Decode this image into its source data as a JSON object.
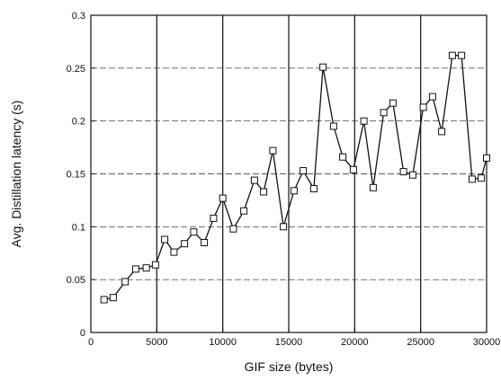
{
  "chart_data": {
    "type": "line",
    "title": "",
    "xlabel": "GIF size (bytes)",
    "ylabel": "Avg. Distillation latency (s)",
    "xlim": [
      0,
      30000
    ],
    "ylim": [
      0,
      0.3
    ],
    "x_ticks": [
      0,
      5000,
      10000,
      15000,
      20000,
      25000,
      30000
    ],
    "x_tick_labels": [
      "0",
      "5000",
      "10000",
      "15000",
      "20000",
      "25000",
      "30000"
    ],
    "y_ticks": [
      0,
      0.05,
      0.1,
      0.15,
      0.2,
      0.25,
      0.3
    ],
    "y_tick_labels": [
      "0",
      "0.05",
      "0.1",
      "0.15",
      "0.2",
      "0.25",
      "0.3"
    ],
    "grid": true,
    "legend": "none",
    "marker": "square",
    "colors": {
      "line": "#111111",
      "grid": "#222222",
      "marker_fill": "#ffffff"
    },
    "series": [
      {
        "x": [
          1000,
          1700,
          2600,
          3400,
          4200,
          4900,
          5600,
          6300,
          7100,
          7800,
          8600,
          9300,
          10000,
          10800,
          11600,
          12400,
          13100,
          13800,
          14600,
          15400,
          16100,
          16900,
          17600,
          18400,
          19100,
          19900,
          20700,
          21400,
          22200,
          22900,
          23700,
          24400,
          25200,
          25900,
          26600,
          27400,
          28100,
          28900,
          29600,
          30000
        ],
        "y": [
          0.031,
          0.033,
          0.048,
          0.06,
          0.061,
          0.064,
          0.088,
          0.076,
          0.084,
          0.095,
          0.085,
          0.108,
          0.127,
          0.098,
          0.115,
          0.144,
          0.133,
          0.172,
          0.1,
          0.134,
          0.153,
          0.136,
          0.251,
          0.195,
          0.166,
          0.154,
          0.2,
          0.137,
          0.208,
          0.217,
          0.152,
          0.149,
          0.213,
          0.223,
          0.19,
          0.262,
          0.262,
          0.145,
          0.146,
          0.165
        ]
      }
    ]
  }
}
